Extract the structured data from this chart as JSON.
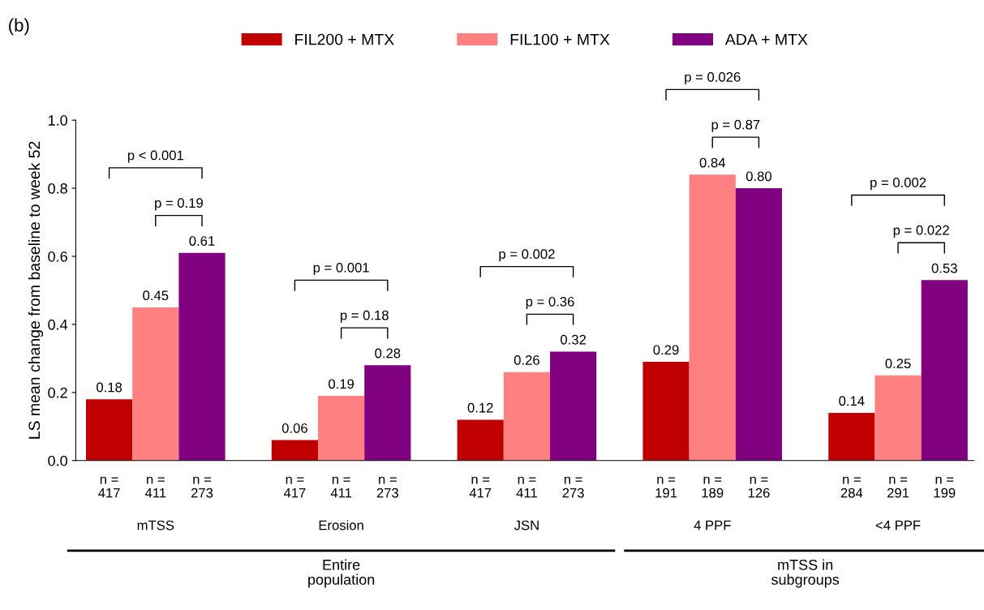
{
  "chart_data": {
    "type": "bar",
    "ylabel": "LS mean change from baseline to week 52",
    "categories": [
      "mTSS",
      "Erosion",
      "JSN",
      "4 PPF",
      "<4 PPF"
    ],
    "series": [
      {
        "name": "FIL200 + MTX",
        "color": "#c00000",
        "values": [
          0.18,
          0.06,
          0.12,
          0.29,
          0.14
        ],
        "value_labels": [
          "0.18",
          "0.06",
          "0.12",
          "0.29",
          "0.14"
        ]
      },
      {
        "name": "FIL100 + MTX",
        "color": "#ff8080",
        "values": [
          0.45,
          0.19,
          0.26,
          0.84,
          0.25
        ],
        "value_labels": [
          "0.45",
          "0.19",
          "0.26",
          "0.84",
          "0.25"
        ]
      },
      {
        "name": "ADA + MTX",
        "color": "#800080",
        "values": [
          0.61,
          0.28,
          0.32,
          0.8,
          0.53
        ],
        "value_labels": [
          "0.61",
          "0.28",
          "0.32",
          "0.80",
          "0.53"
        ]
      }
    ],
    "ylim": [
      0,
      1.0
    ],
    "yticks": [
      {
        "value": 0,
        "label": "0.0"
      },
      {
        "value": 0.2,
        "label": "0.2"
      },
      {
        "value": 0.4,
        "label": "0.4"
      },
      {
        "value": 0.6,
        "label": "0.6"
      },
      {
        "value": 0.8,
        "label": "0.8"
      },
      {
        "value": 1.0,
        "label": "1.0"
      }
    ],
    "legend": "top",
    "grid": false,
    "annotations": [
      "(b)",
      "p < 0.001",
      "p = 0.19",
      "p = 0.001",
      "p = 0.18",
      "p = 0.002",
      "p = 0.36",
      "p = 0.026",
      "p = 0.87",
      "p = 0.002",
      "p = 0.022",
      "n =\n417",
      "n =\n411",
      "n =\n273",
      "n =\n417",
      "n =\n411",
      "n =\n273",
      "n =\n417",
      "n =\n411",
      "n =\n273",
      "n =\n191",
      "n =\n189",
      "n =\n126",
      "n =\n284",
      "n =\n291",
      "n =\n199",
      "Entire\npopulation",
      "mTSS in\nsubgroups"
    ]
  }
}
